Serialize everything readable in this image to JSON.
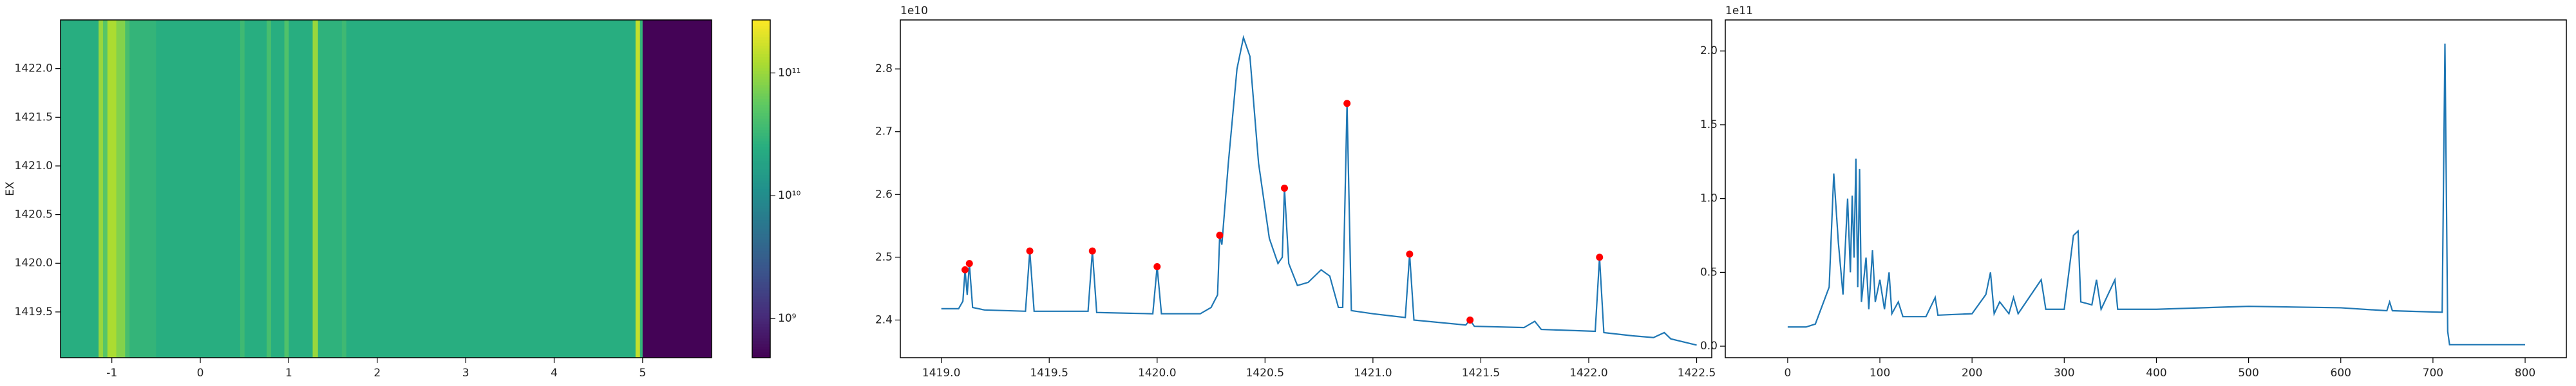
{
  "chart_data": [
    {
      "type": "heatmap",
      "ylabel": "EX",
      "colormap": "viridis",
      "x_edges": [
        -1.58,
        -1.15,
        -1.1,
        -1.05,
        -0.95,
        -0.85,
        -0.8,
        -0.5,
        0.45,
        0.5,
        0.75,
        0.8,
        0.95,
        1.0,
        1.27,
        1.33,
        1.6,
        1.65,
        4.92,
        4.97,
        5.0,
        5.78
      ],
      "values": [
        25000000000.0,
        100000000000.0,
        50000000000.0,
        120000000000.0,
        80000000000.0,
        40000000000.0,
        30000000000.0,
        25000000000.0,
        35000000000.0,
        25000000000.0,
        40000000000.0,
        25000000000.0,
        45000000000.0,
        25000000000.0,
        100000000000.0,
        28000000000.0,
        35000000000.0,
        25000000000.0,
        150000000000.0,
        30000000000.0,
        500000000.0
      ],
      "xlim": [
        -1.58,
        5.78
      ],
      "ylim": [
        1419.03,
        1422.5
      ],
      "xticks": [
        -1,
        0,
        1,
        2,
        3,
        4,
        5
      ],
      "yticks": [
        1419.5,
        {
          "value": 1420,
          "label": "1420.0"
        },
        1420.5,
        {
          "value": 1421,
          "label": "1421.0"
        },
        1421.5,
        {
          "value": 1422,
          "label": "1422.0"
        }
      ],
      "colorbar": {
        "scale": "log",
        "lim": [
          480000000.0,
          270000000000.0
        ],
        "ticks": [
          {
            "value": 1000000000.0,
            "label": "10⁹"
          },
          {
            "value": 10000000000.0,
            "label": "10¹⁰"
          },
          {
            "value": 100000000000.0,
            "label": "10¹¹"
          }
        ]
      }
    },
    {
      "type": "line",
      "offset_text": "1e10",
      "xlim": [
        1418.81,
        1422.57
      ],
      "ylim": [
        2.34,
        2.878
      ],
      "xticks": [
        {
          "value": 1419,
          "label": "1419.0"
        },
        1419.5,
        {
          "value": 1420,
          "label": "1420.0"
        },
        1420.5,
        {
          "value": 1421,
          "label": "1421.0"
        },
        1421.5,
        {
          "value": 1422,
          "label": "1422.0"
        },
        1422.5
      ],
      "yticks": [
        2.4,
        2.5,
        2.6,
        2.7,
        2.8
      ],
      "series": [
        {
          "style": "line",
          "color": "#1f77b4",
          "x": [
            1419.0,
            1419.08,
            1419.1,
            1419.11,
            1419.12,
            1419.13,
            1419.145,
            1419.2,
            1419.39,
            1419.41,
            1419.43,
            1419.68,
            1419.7,
            1419.72,
            1419.98,
            1420.0,
            1420.02,
            1420.2,
            1420.25,
            1420.28,
            1420.29,
            1420.3,
            1420.33,
            1420.37,
            1420.4,
            1420.43,
            1420.47,
            1420.52,
            1420.56,
            1420.58,
            1420.59,
            1420.61,
            1420.65,
            1420.7,
            1420.76,
            1420.8,
            1420.84,
            1420.86,
            1420.88,
            1420.9,
            1421.0,
            1421.15,
            1421.17,
            1421.19,
            1421.43,
            1421.45,
            1421.47,
            1421.7,
            1421.75,
            1421.78,
            1422.03,
            1422.05,
            1422.07,
            1422.2,
            1422.3,
            1422.35,
            1422.38,
            1422.5
          ],
          "values": [
            2.418,
            2.418,
            2.43,
            2.48,
            2.44,
            2.49,
            2.42,
            2.416,
            2.414,
            2.51,
            2.414,
            2.414,
            2.51,
            2.412,
            2.41,
            2.485,
            2.41,
            2.41,
            2.42,
            2.44,
            2.535,
            2.52,
            2.65,
            2.8,
            2.85,
            2.82,
            2.65,
            2.53,
            2.49,
            2.5,
            2.61,
            2.49,
            2.455,
            2.46,
            2.48,
            2.47,
            2.42,
            2.42,
            2.745,
            2.415,
            2.41,
            2.404,
            2.505,
            2.4,
            2.392,
            2.4,
            2.39,
            2.388,
            2.398,
            2.385,
            2.382,
            2.5,
            2.38,
            2.375,
            2.372,
            2.38,
            2.37,
            2.36
          ]
        },
        {
          "style": "markers",
          "color": "#ff0000",
          "x": [
            1419.11,
            1419.13,
            1419.41,
            1419.7,
            1420.0,
            1420.29,
            1420.59,
            1420.88,
            1421.17,
            1421.45,
            1422.05
          ],
          "values": [
            2.48,
            2.49,
            2.51,
            2.51,
            2.485,
            2.535,
            2.61,
            2.745,
            2.505,
            2.4,
            2.5
          ]
        }
      ]
    },
    {
      "type": "line",
      "offset_text": "1e11",
      "xlim": [
        -67.7,
        844.7
      ],
      "ylim": [
        -0.078,
        2.21
      ],
      "xticks": [
        0,
        100,
        200,
        300,
        400,
        500,
        600,
        700,
        800
      ],
      "yticks": [
        {
          "value": 0,
          "label": "0.0"
        },
        0.5,
        {
          "value": 1,
          "label": "1.0"
        },
        1.5,
        {
          "value": 2,
          "label": "2.0"
        }
      ],
      "series": [
        {
          "style": "line",
          "color": "#1f77b4",
          "x": [
            0,
            20,
            30,
            45,
            50,
            55,
            60,
            65,
            68,
            70,
            72,
            74,
            76,
            78,
            80,
            85,
            88,
            92,
            95,
            100,
            105,
            110,
            113,
            120,
            125,
            150,
            160,
            163,
            200,
            215,
            220,
            224,
            230,
            240,
            245,
            250,
            275,
            280,
            300,
            310,
            315,
            318,
            330,
            335,
            340,
            355,
            358,
            400,
            500,
            600,
            650,
            653,
            656,
            710,
            713,
            716,
            718,
            800
          ],
          "values": [
            0.13,
            0.13,
            0.15,
            0.4,
            1.17,
            0.7,
            0.35,
            1.0,
            0.5,
            1.02,
            0.6,
            1.27,
            0.4,
            1.2,
            0.3,
            0.6,
            0.25,
            0.65,
            0.3,
            0.45,
            0.25,
            0.5,
            0.22,
            0.3,
            0.2,
            0.2,
            0.33,
            0.21,
            0.22,
            0.35,
            0.5,
            0.22,
            0.3,
            0.22,
            0.33,
            0.22,
            0.45,
            0.25,
            0.25,
            0.75,
            0.78,
            0.3,
            0.28,
            0.45,
            0.25,
            0.45,
            0.25,
            0.25,
            0.27,
            0.26,
            0.24,
            0.3,
            0.24,
            0.23,
            2.05,
            0.1,
            0.01,
            0.01
          ]
        }
      ]
    }
  ]
}
